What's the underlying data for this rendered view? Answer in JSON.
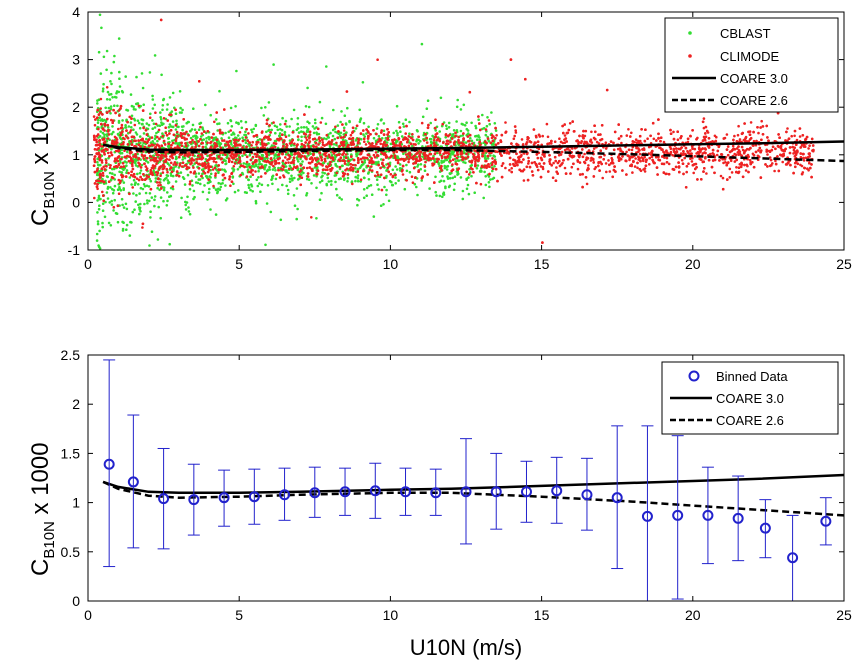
{
  "chart_data": [
    {
      "type": "scatter",
      "ylabel_main": "C",
      "ylabel_sub": "B10N",
      "ylabel_tail": " x 1000",
      "xlim": [
        0,
        25
      ],
      "ylim": [
        -1,
        4
      ],
      "xticks": [
        0,
        5,
        10,
        15,
        20,
        25
      ],
      "yticks": [
        -1,
        0,
        1,
        2,
        3,
        4
      ],
      "legend_position": "top-right",
      "series": [
        {
          "name": "CBLAST",
          "kind": "points",
          "color": "#33dd33",
          "x_range": [
            0.3,
            13.5
          ],
          "center": 1.0,
          "spread": 0.4,
          "count": 2200
        },
        {
          "name": "CLIMODE",
          "kind": "points",
          "color": "#ee2222",
          "x_range": [
            0.2,
            24
          ],
          "center": 1.05,
          "spread": 0.25,
          "count": 4200
        },
        {
          "name": "COARE 3.0",
          "kind": "line",
          "style": "solid",
          "x": [
            0.5,
            1,
            2,
            3,
            5,
            7,
            10,
            12,
            15,
            18,
            20,
            22,
            25
          ],
          "y": [
            1.21,
            1.16,
            1.11,
            1.1,
            1.1,
            1.11,
            1.13,
            1.14,
            1.17,
            1.2,
            1.22,
            1.24,
            1.28
          ]
        },
        {
          "name": "COARE 2.6",
          "kind": "line",
          "style": "dashed",
          "x": [
            0.5,
            1,
            2,
            3,
            5,
            7,
            10,
            12,
            15,
            18,
            20,
            22,
            25
          ],
          "y": [
            1.21,
            1.14,
            1.07,
            1.05,
            1.06,
            1.08,
            1.1,
            1.1,
            1.06,
            1.01,
            0.97,
            0.93,
            0.87
          ]
        }
      ]
    },
    {
      "type": "scatter",
      "ylabel_main": "C",
      "ylabel_sub": "B10N",
      "ylabel_tail": " x 1000",
      "xlabel": "U10N (m/s)",
      "xlim": [
        0,
        25
      ],
      "ylim": [
        0,
        2.5
      ],
      "xticks": [
        0,
        5,
        10,
        15,
        20,
        25
      ],
      "yticks": [
        0,
        0.5,
        1,
        1.5,
        2,
        2.5
      ],
      "legend_position": "top-right",
      "series": [
        {
          "name": "Binned Data",
          "kind": "errorbar",
          "color": "#2222cc",
          "x": [
            0.7,
            1.5,
            2.5,
            3.5,
            4.5,
            5.5,
            6.5,
            7.5,
            8.5,
            9.5,
            10.5,
            11.5,
            12.5,
            13.5,
            14.5,
            15.5,
            16.5,
            17.5,
            18.5,
            19.5,
            20.5,
            21.5,
            22.4,
            23.3,
            24.4
          ],
          "y": [
            1.39,
            1.21,
            1.04,
            1.03,
            1.05,
            1.06,
            1.08,
            1.1,
            1.11,
            1.12,
            1.11,
            1.1,
            1.11,
            1.11,
            1.11,
            1.12,
            1.08,
            1.05,
            0.86,
            0.87,
            0.87,
            0.84,
            0.74,
            0.44,
            0.81
          ],
          "err_low": [
            0.35,
            0.54,
            0.53,
            0.67,
            0.76,
            0.78,
            0.82,
            0.85,
            0.87,
            0.84,
            0.87,
            0.87,
            0.58,
            0.73,
            0.8,
            0.79,
            0.72,
            0.33,
            0.0,
            0.02,
            0.38,
            0.41,
            0.44,
            0.0,
            0.57
          ],
          "err_high": [
            2.45,
            1.89,
            1.55,
            1.39,
            1.33,
            1.34,
            1.35,
            1.36,
            1.35,
            1.4,
            1.35,
            1.34,
            1.65,
            1.5,
            1.42,
            1.46,
            1.45,
            1.78,
            1.78,
            1.68,
            1.36,
            1.27,
            1.03,
            0.87,
            1.05
          ]
        },
        {
          "name": "COARE 3.0",
          "kind": "line",
          "style": "solid",
          "x": [
            0.5,
            1,
            2,
            3,
            5,
            7,
            10,
            12,
            15,
            18,
            20,
            22,
            25
          ],
          "y": [
            1.21,
            1.16,
            1.11,
            1.1,
            1.1,
            1.11,
            1.13,
            1.14,
            1.17,
            1.2,
            1.22,
            1.24,
            1.28
          ]
        },
        {
          "name": "COARE 2.6",
          "kind": "line",
          "style": "dashed",
          "x": [
            0.5,
            1,
            2,
            3,
            5,
            7,
            10,
            12,
            15,
            18,
            20,
            22,
            25
          ],
          "y": [
            1.21,
            1.14,
            1.07,
            1.05,
            1.06,
            1.08,
            1.1,
            1.1,
            1.06,
            1.01,
            0.97,
            0.93,
            0.87
          ]
        }
      ]
    }
  ]
}
